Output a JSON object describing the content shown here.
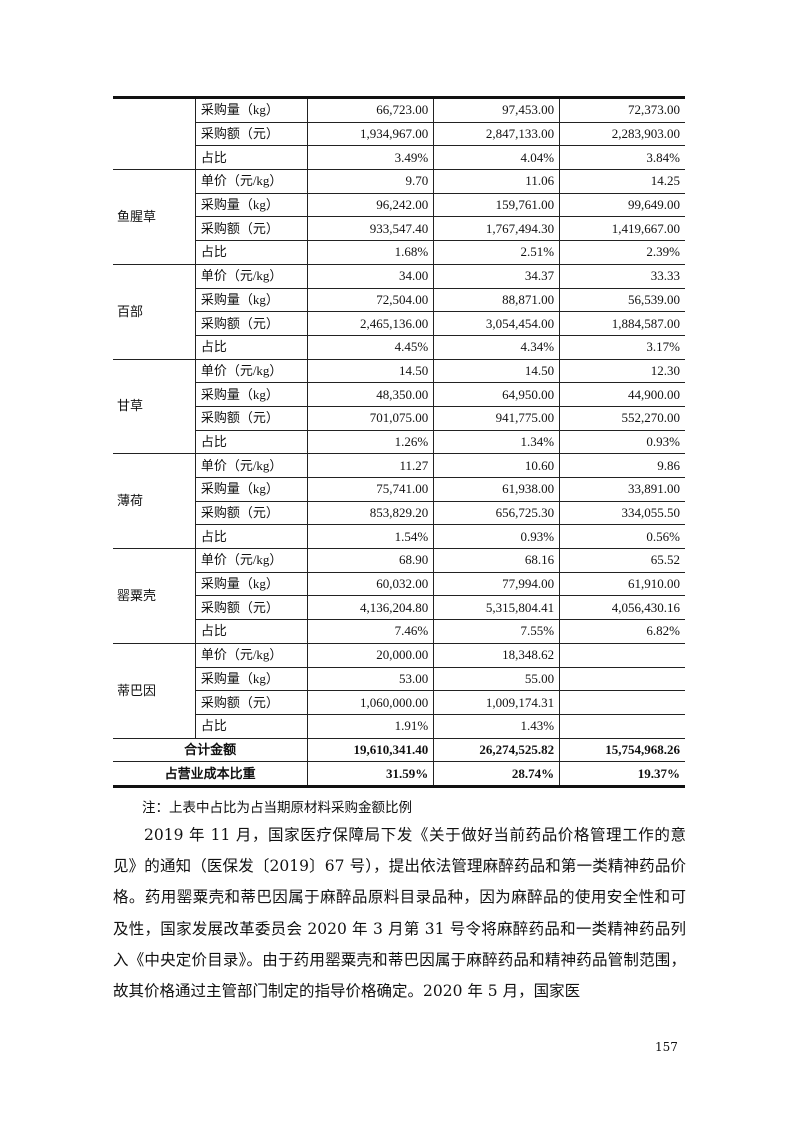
{
  "table": {
    "continued_rows": [
      {
        "label": "采购量（kg）",
        "values": [
          "66,723.00",
          "97,453.00",
          "72,373.00"
        ]
      },
      {
        "label": "采购额（元）",
        "values": [
          "1,934,967.00",
          "2,847,133.00",
          "2,283,903.00"
        ]
      },
      {
        "label": "占比",
        "values": [
          "3.49%",
          "4.04%",
          "3.84%"
        ]
      }
    ],
    "groups": [
      {
        "name": "鱼腥草",
        "rows": [
          {
            "label": "单价（元/kg）",
            "values": [
              "9.70",
              "11.06",
              "14.25"
            ]
          },
          {
            "label": "采购量（kg）",
            "values": [
              "96,242.00",
              "159,761.00",
              "99,649.00"
            ]
          },
          {
            "label": "采购额（元）",
            "values": [
              "933,547.40",
              "1,767,494.30",
              "1,419,667.00"
            ]
          },
          {
            "label": "占比",
            "values": [
              "1.68%",
              "2.51%",
              "2.39%"
            ]
          }
        ]
      },
      {
        "name": "百部",
        "rows": [
          {
            "label": "单价（元/kg）",
            "values": [
              "34.00",
              "34.37",
              "33.33"
            ]
          },
          {
            "label": "采购量（kg）",
            "values": [
              "72,504.00",
              "88,871.00",
              "56,539.00"
            ]
          },
          {
            "label": "采购额（元）",
            "values": [
              "2,465,136.00",
              "3,054,454.00",
              "1,884,587.00"
            ]
          },
          {
            "label": "占比",
            "values": [
              "4.45%",
              "4.34%",
              "3.17%"
            ]
          }
        ]
      },
      {
        "name": "甘草",
        "rows": [
          {
            "label": "单价（元/kg）",
            "values": [
              "14.50",
              "14.50",
              "12.30"
            ]
          },
          {
            "label": "采购量（kg）",
            "values": [
              "48,350.00",
              "64,950.00",
              "44,900.00"
            ]
          },
          {
            "label": "采购额（元）",
            "values": [
              "701,075.00",
              "941,775.00",
              "552,270.00"
            ]
          },
          {
            "label": "占比",
            "values": [
              "1.26%",
              "1.34%",
              "0.93%"
            ]
          }
        ]
      },
      {
        "name": "薄荷",
        "rows": [
          {
            "label": "单价（元/kg）",
            "values": [
              "11.27",
              "10.60",
              "9.86"
            ]
          },
          {
            "label": "采购量（kg）",
            "values": [
              "75,741.00",
              "61,938.00",
              "33,891.00"
            ]
          },
          {
            "label": "采购额（元）",
            "values": [
              "853,829.20",
              "656,725.30",
              "334,055.50"
            ]
          },
          {
            "label": "占比",
            "values": [
              "1.54%",
              "0.93%",
              "0.56%"
            ]
          }
        ]
      },
      {
        "name": "罂粟壳",
        "rows": [
          {
            "label": "单价（元/kg）",
            "values": [
              "68.90",
              "68.16",
              "65.52"
            ]
          },
          {
            "label": "采购量（kg）",
            "values": [
              "60,032.00",
              "77,994.00",
              "61,910.00"
            ]
          },
          {
            "label": "采购额（元）",
            "values": [
              "4,136,204.80",
              "5,315,804.41",
              "4,056,430.16"
            ]
          },
          {
            "label": "占比",
            "values": [
              "7.46%",
              "7.55%",
              "6.82%"
            ]
          }
        ]
      },
      {
        "name": "蒂巴因",
        "rows": [
          {
            "label": "单价（元/kg）",
            "values": [
              "20,000.00",
              "18,348.62",
              ""
            ]
          },
          {
            "label": "采购量（kg）",
            "values": [
              "53.00",
              "55.00",
              ""
            ]
          },
          {
            "label": "采购额（元）",
            "values": [
              "1,060,000.00",
              "1,009,174.31",
              ""
            ]
          },
          {
            "label": "占比",
            "values": [
              "1.91%",
              "1.43%",
              ""
            ]
          }
        ]
      }
    ],
    "totals": [
      {
        "label": "合计金额",
        "values": [
          "19,610,341.40",
          "26,274,525.82",
          "15,754,968.26"
        ]
      },
      {
        "label": "占营业成本比重",
        "values": [
          "31.59%",
          "28.74%",
          "19.37%"
        ]
      }
    ]
  },
  "note": "注：上表中占比为占当期原材料采购金额比例",
  "paragraph": "2019 年 11 月，国家医疗保障局下发《关于做好当前药品价格管理工作的意见》的通知（医保发〔2019〕67 号），提出依法管理麻醉药品和第一类精神药品价格。药用罂粟壳和蒂巴因属于麻醉品原料目录品种，因为麻醉品的使用安全性和可及性，国家发展改革委员会 2020 年 3 月第 31 号令将麻醉药品和一类精神药品列入《中央定价目录》。由于药用罂粟壳和蒂巴因属于麻醉药品和精神药品管制范围，故其价格通过主管部门制定的指导价格确定。2020 年 5 月，国家医",
  "page_number": "157"
}
